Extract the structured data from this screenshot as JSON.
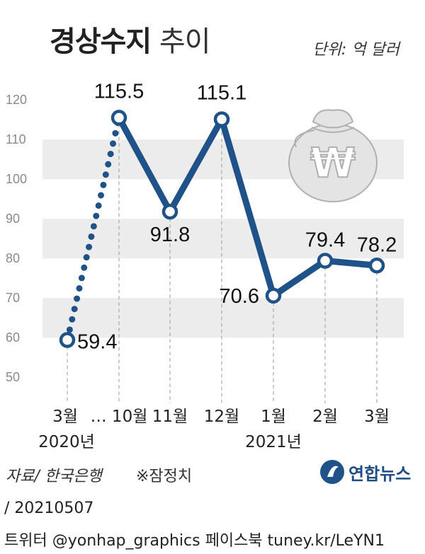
{
  "header": {
    "title_bold": "경상수지",
    "title_light": "추이",
    "unit": "단위: 억 달러"
  },
  "chart_data": {
    "type": "line",
    "categories": [
      "3월",
      "… 10월",
      "11월",
      "12월",
      "1월",
      "2월",
      "3월"
    ],
    "year_labels": [
      "2020년",
      "2021년"
    ],
    "values": [
      59.4,
      115.5,
      91.8,
      115.1,
      70.6,
      79.4,
      78.2
    ],
    "value_labels": [
      "59.4",
      "115.5",
      "91.8",
      "115.1",
      "70.6",
      "79.4",
      "78.2"
    ],
    "dotted_segment": [
      0,
      1
    ],
    "yticks": [
      50,
      60,
      70,
      80,
      90,
      100,
      110,
      120
    ],
    "ylim": [
      47,
      122
    ],
    "grid": "alternating bands",
    "series_color": "#1e5289",
    "band_color": "#ececec"
  },
  "footer": {
    "source": "자료/ 한국은행",
    "note": "※잠정치",
    "logo_text": "연합뉴스",
    "date": "/ 20210507",
    "social": "트위터 @yonhap_graphics  페이스북 tuney.kr/LeYN1"
  }
}
